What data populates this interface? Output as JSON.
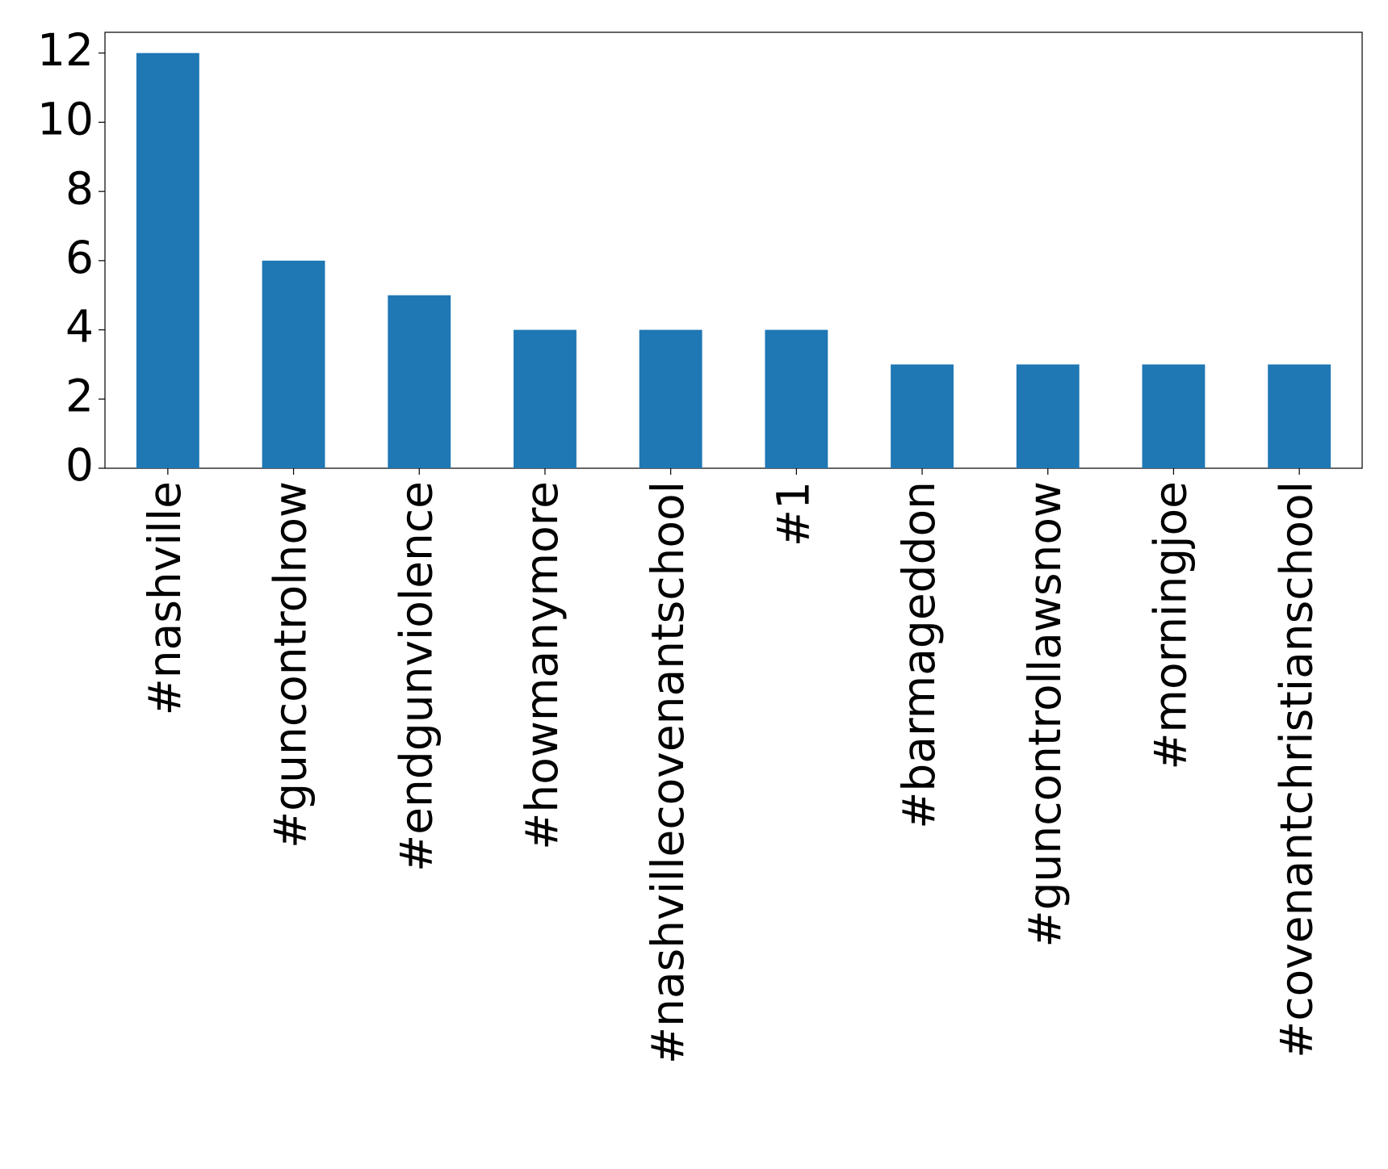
{
  "chart_data": {
    "type": "bar",
    "categories": [
      "#nashville",
      "#guncontrolnow",
      "#endgunviolence",
      "#howmanymore",
      "#nashvillecovenantschool",
      "#1",
      "#barmageddon",
      "#guncontrollawsnow",
      "#morningjoe",
      "#covenantchristianschool"
    ],
    "values": [
      12,
      6,
      5,
      4,
      4,
      4,
      3,
      3,
      3,
      3
    ],
    "color": "#1f77b4",
    "ylim": [
      0,
      12.6
    ],
    "yticks": [
      0,
      2,
      4,
      6,
      8,
      10,
      12
    ],
    "grid": false
  }
}
